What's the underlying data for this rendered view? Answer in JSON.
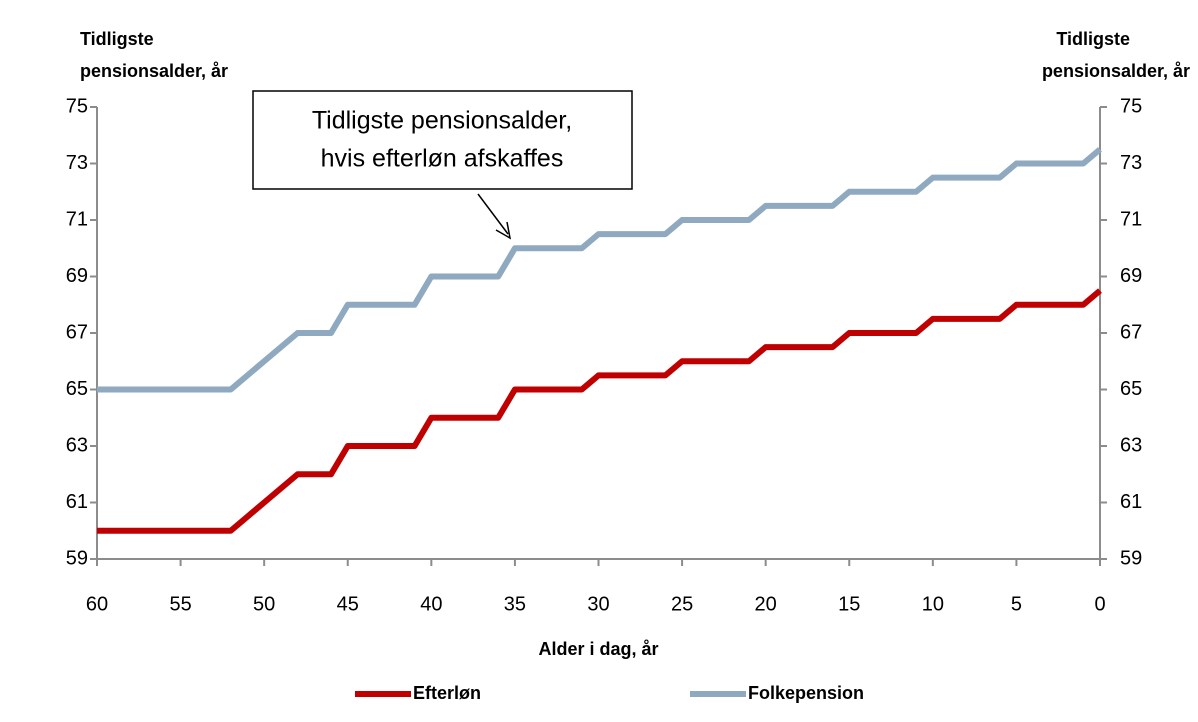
{
  "chart_data": {
    "type": "line",
    "annotation": [
      "Tidligste pensionsalder,",
      "hvis efterløn afskaffes"
    ],
    "y_label": [
      "Tidligste",
      "pensionsalder, år"
    ],
    "y2_label": [
      "Tidligste",
      "pensionsalder, år"
    ],
    "x_label": "Alder i dag, år",
    "x": [
      60,
      52,
      51,
      50,
      49,
      48,
      46,
      45,
      41,
      40,
      36,
      35,
      31,
      30,
      26,
      25,
      21,
      20,
      16,
      15,
      11,
      10,
      6,
      5,
      1,
      0
    ],
    "series": [
      {
        "name": "Efterløn",
        "color": "#c00000",
        "values": [
          60,
          60,
          60.5,
          61,
          61.5,
          62,
          62,
          63,
          63,
          64,
          64,
          65,
          65,
          65.5,
          65.5,
          66,
          66,
          66.5,
          66.5,
          67,
          67,
          67.5,
          67.5,
          68,
          68,
          68.5
        ]
      },
      {
        "name": "Folkepension",
        "color": "#8faac0",
        "values": [
          65,
          65,
          65.5,
          66,
          66.5,
          67,
          67,
          68,
          68,
          69,
          69,
          70,
          70,
          70.5,
          70.5,
          71,
          71,
          71.5,
          71.5,
          72,
          72,
          72.5,
          72.5,
          73,
          73,
          73.5
        ]
      }
    ],
    "xlim": [
      60,
      0
    ],
    "xticks": [
      60,
      55,
      50,
      45,
      40,
      35,
      30,
      25,
      20,
      15,
      10,
      5,
      0
    ],
    "ylim": [
      59,
      75
    ],
    "yticks": [
      59,
      61,
      63,
      65,
      67,
      69,
      71,
      73,
      75
    ],
    "y2lim": [
      59,
      75
    ],
    "y2ticks": [
      59,
      61,
      63,
      65,
      67,
      69,
      71,
      73,
      75
    ],
    "legend": "bottom"
  }
}
